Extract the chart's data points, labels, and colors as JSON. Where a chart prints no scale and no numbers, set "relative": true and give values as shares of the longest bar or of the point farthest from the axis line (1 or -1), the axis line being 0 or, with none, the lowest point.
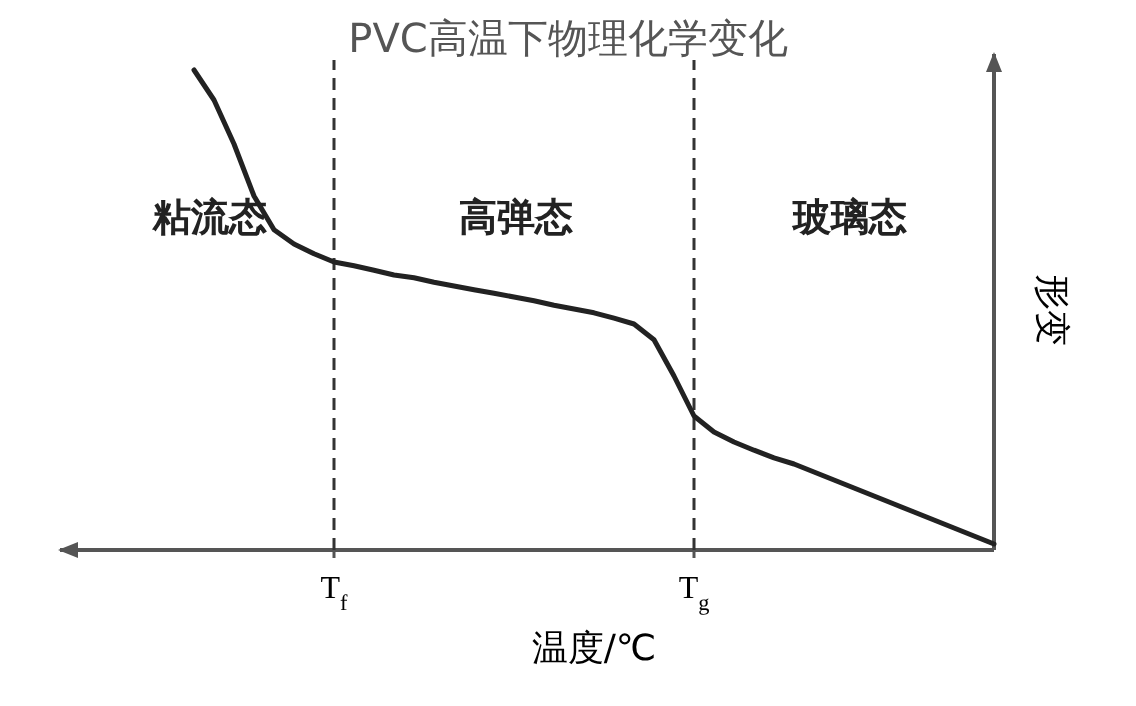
{
  "chart_data": {
    "type": "line",
    "title": "PVC高温下物理化学变化",
    "xlabel": "温度/℃",
    "ylabel": "形变",
    "relative": true,
    "categories": [
      null,
      null,
      null,
      null,
      null,
      null,
      null,
      "T$_{f}$",
      null,
      null,
      null,
      null,
      null,
      null,
      null,
      null,
      null,
      null,
      null,
      null,
      null,
      null,
      null,
      null,
      null,
      "T$_{g}$",
      null,
      null,
      null,
      null,
      null,
      null,
      null,
      null,
      null,
      null,
      null,
      null,
      null,
      null,
      null
    ],
    "ref_lines": [
      {
        "axis": "x",
        "value": "T$_{f}$",
        "color": "#333333",
        "line_style": "dashed"
      },
      {
        "axis": "x",
        "value": "T$_{g}$",
        "color": "#333333",
        "line_style": "dashed"
      }
    ],
    "annotations": [
      "粘流态",
      "高弹态",
      "玻璃态"
    ],
    "series": [
      {
        "color": "#222222",
        "values": [
          1,
          0.9375,
          0.846,
          0.7375,
          0.667,
          0.6375,
          0.617,
          0.6,
          0.592,
          0.583,
          0.573,
          0.567,
          0.558,
          0.55,
          0.542,
          0.535,
          0.527,
          0.519,
          0.51,
          0.502,
          0.494,
          0.483,
          0.471,
          0.438,
          0.3625,
          0.279,
          0.246,
          0.225,
          0.208,
          0.192,
          0.179,
          0.1625,
          0.146,
          0.129,
          0.1125,
          0.096,
          0.079,
          0.0625,
          0.046,
          0.029,
          0.0125
        ]
      }
    ]
  }
}
